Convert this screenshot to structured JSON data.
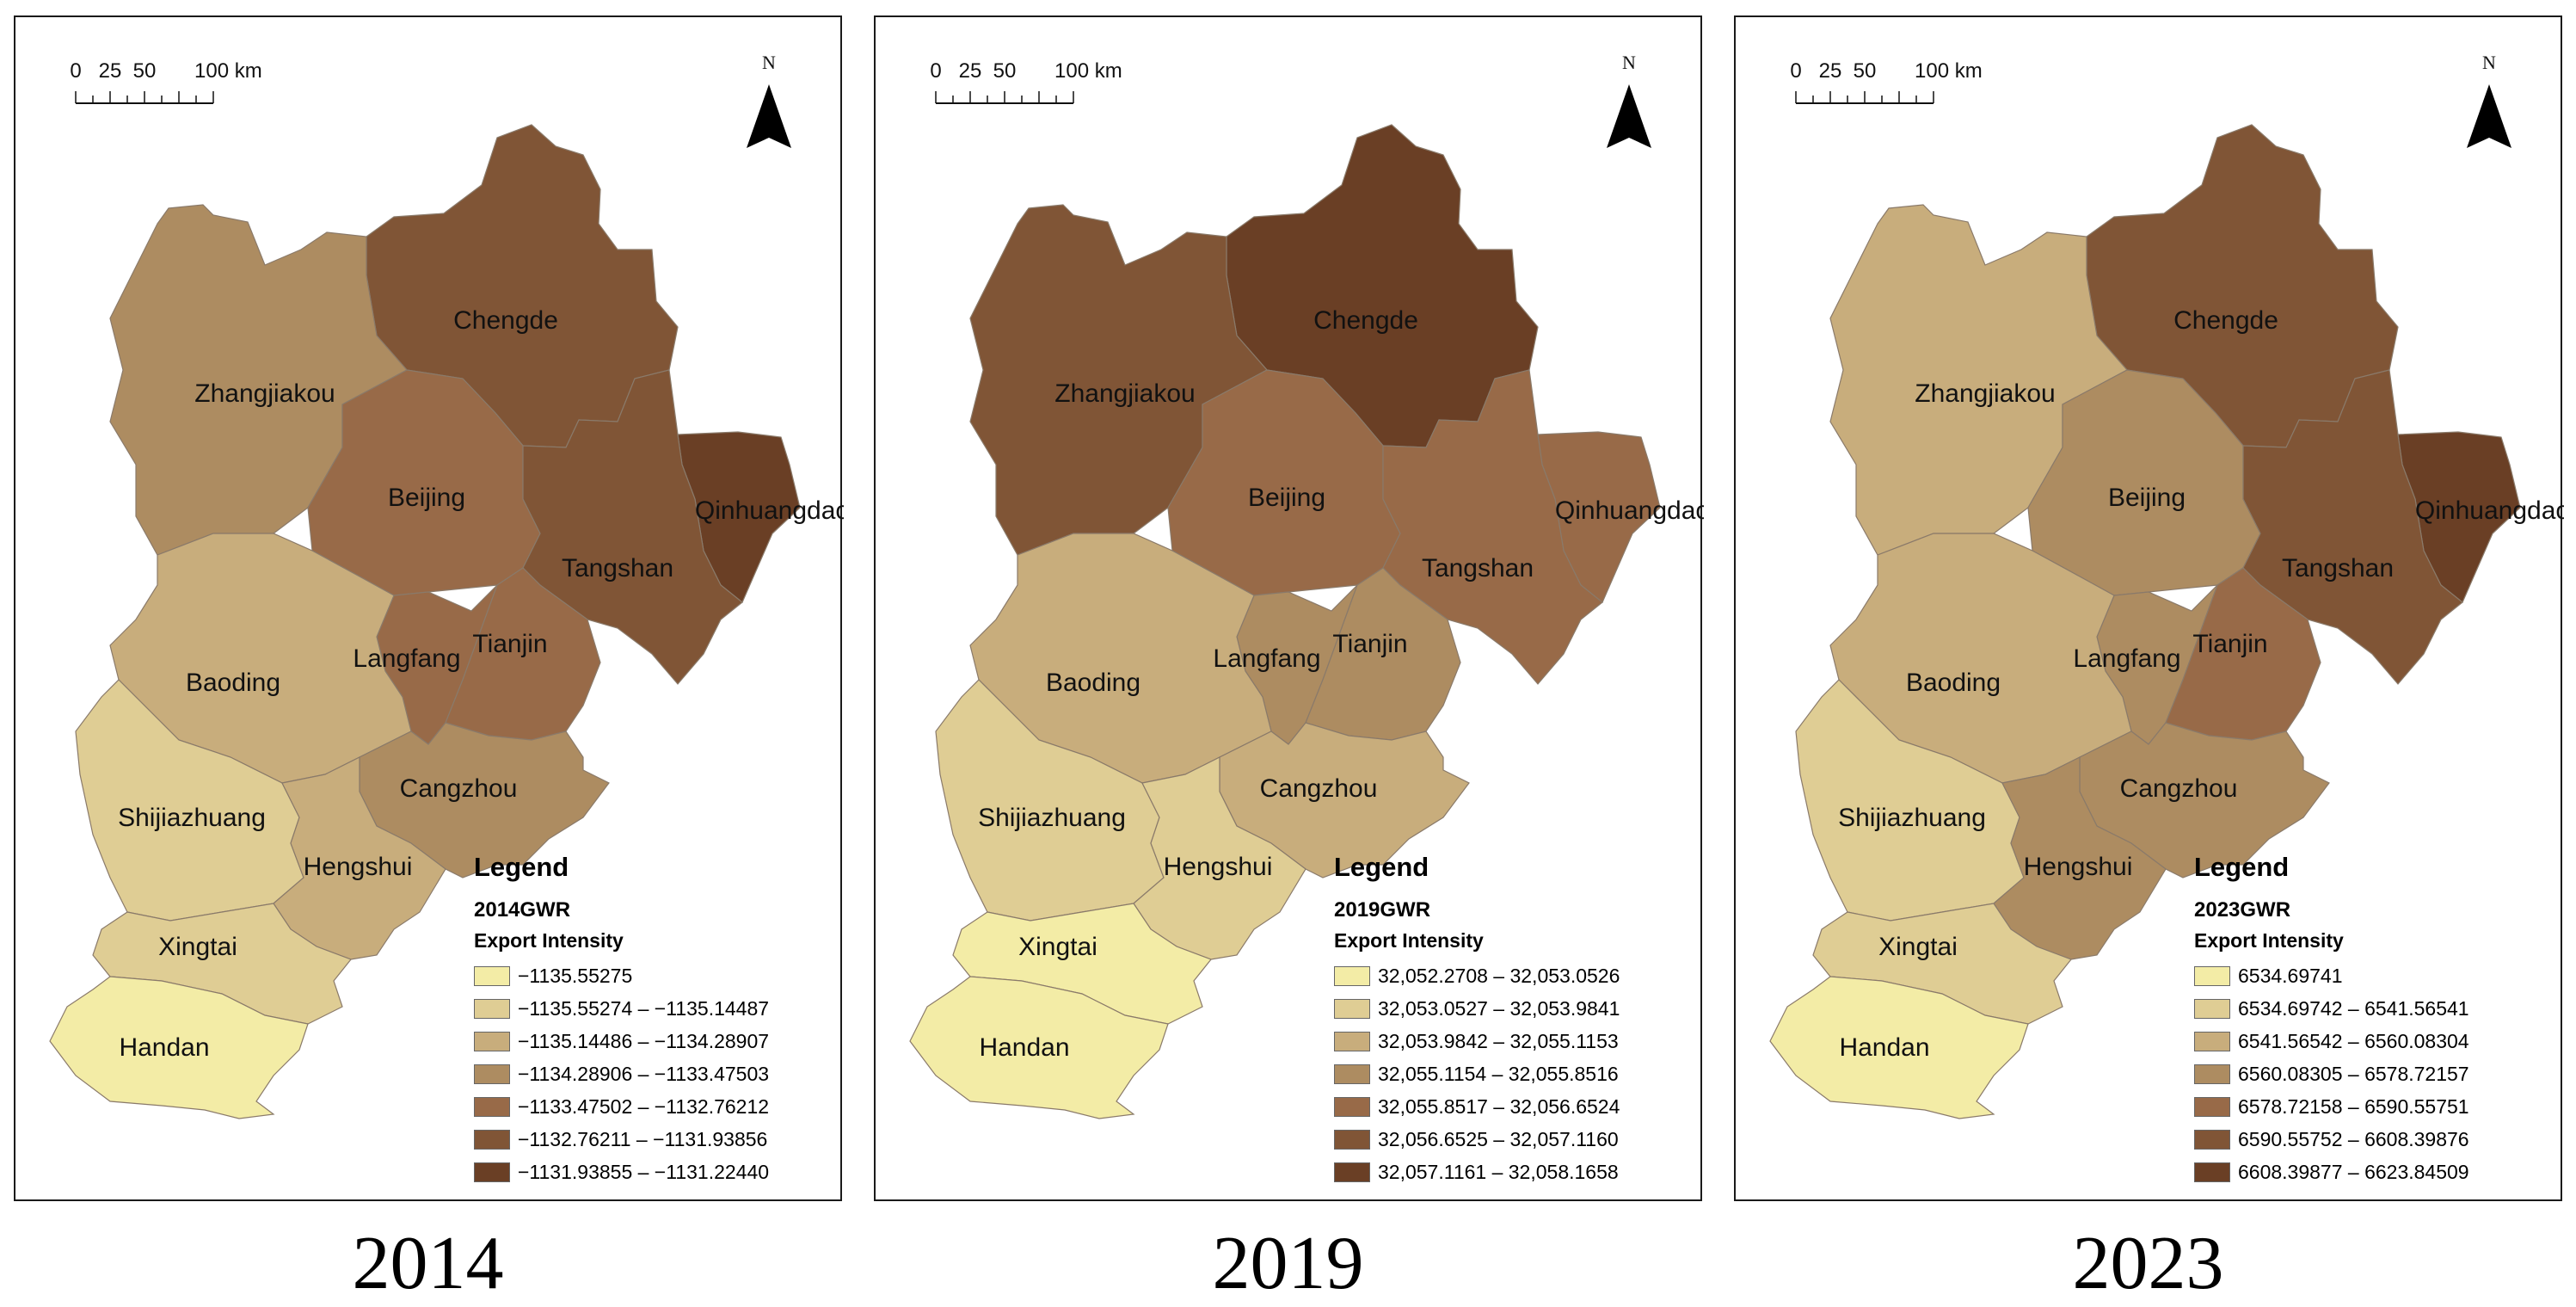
{
  "map": {
    "scale_bar": {
      "ticks": [
        "0",
        "25",
        "50",
        "100 km"
      ]
    },
    "north_arrow": {
      "label": "N"
    },
    "region_names": [
      "Chengde",
      "Zhangjiakou",
      "Beijing",
      "Qinhuangdao",
      "Tangshan",
      "Langfang",
      "Tianjin",
      "Baoding",
      "Cangzhou",
      "Shijiazhuang",
      "Hengshui",
      "Xingtai",
      "Handan"
    ],
    "class_colors": [
      "#f3eca6",
      "#dfcd94",
      "#c8ad7c",
      "#ad8c61",
      "#986a48",
      "#805536",
      "#6a3f25"
    ]
  },
  "panels": [
    {
      "year": "2014",
      "legend": {
        "title": "Legend",
        "layer": "2014GWR",
        "field": "Export Intensity",
        "classes": [
          "−1135.55275",
          "−1135.55274 – −1135.14487",
          "−1135.14486 – −1134.28907",
          "−1134.28906 – −1133.47503",
          "−1133.47502 – −1132.76212",
          "−1132.76211 – −1131.93856",
          "−1131.93855 – −1131.22440"
        ]
      },
      "region_class": {
        "Chengde": 5,
        "Zhangjiakou": 3,
        "Beijing": 4,
        "Qinhuangdao": 6,
        "Tangshan": 5,
        "Langfang": 4,
        "Tianjin": 4,
        "Baoding": 2,
        "Cangzhou": 3,
        "Shijiazhuang": 1,
        "Hengshui": 2,
        "Xingtai": 1,
        "Handan": 0
      }
    },
    {
      "year": "2019",
      "legend": {
        "title": "Legend",
        "layer": "2019GWR",
        "field": "Export Intensity",
        "classes": [
          "32,052.2708 – 32,053.0526",
          "32,053.0527 – 32,053.9841",
          "32,053.9842 – 32,055.1153",
          "32,055.1154 – 32,055.8516",
          "32,055.8517 – 32,056.6524",
          "32,056.6525 – 32,057.1160",
          "32,057.1161 – 32,058.1658"
        ]
      },
      "region_class": {
        "Chengde": 6,
        "Zhangjiakou": 5,
        "Beijing": 4,
        "Qinhuangdao": 4,
        "Tangshan": 4,
        "Langfang": 3,
        "Tianjin": 3,
        "Baoding": 2,
        "Cangzhou": 2,
        "Shijiazhuang": 1,
        "Hengshui": 1,
        "Xingtai": 0,
        "Handan": 0
      }
    },
    {
      "year": "2023",
      "legend": {
        "title": "Legend",
        "layer": "2023GWR",
        "field": "Export Intensity",
        "classes": [
          "6534.69741",
          "6534.69742 – 6541.56541",
          "6541.56542 – 6560.08304",
          "6560.08305 – 6578.72157",
          "6578.72158 – 6590.55751",
          "6590.55752 – 6608.39876",
          "6608.39877 – 6623.84509"
        ]
      },
      "region_class": {
        "Chengde": 5,
        "Zhangjiakou": 2,
        "Beijing": 3,
        "Qinhuangdao": 6,
        "Tangshan": 5,
        "Langfang": 3,
        "Tianjin": 4,
        "Baoding": 2,
        "Cangzhou": 3,
        "Shijiazhuang": 1,
        "Hengshui": 3,
        "Xingtai": 1,
        "Handan": 0
      }
    }
  ]
}
